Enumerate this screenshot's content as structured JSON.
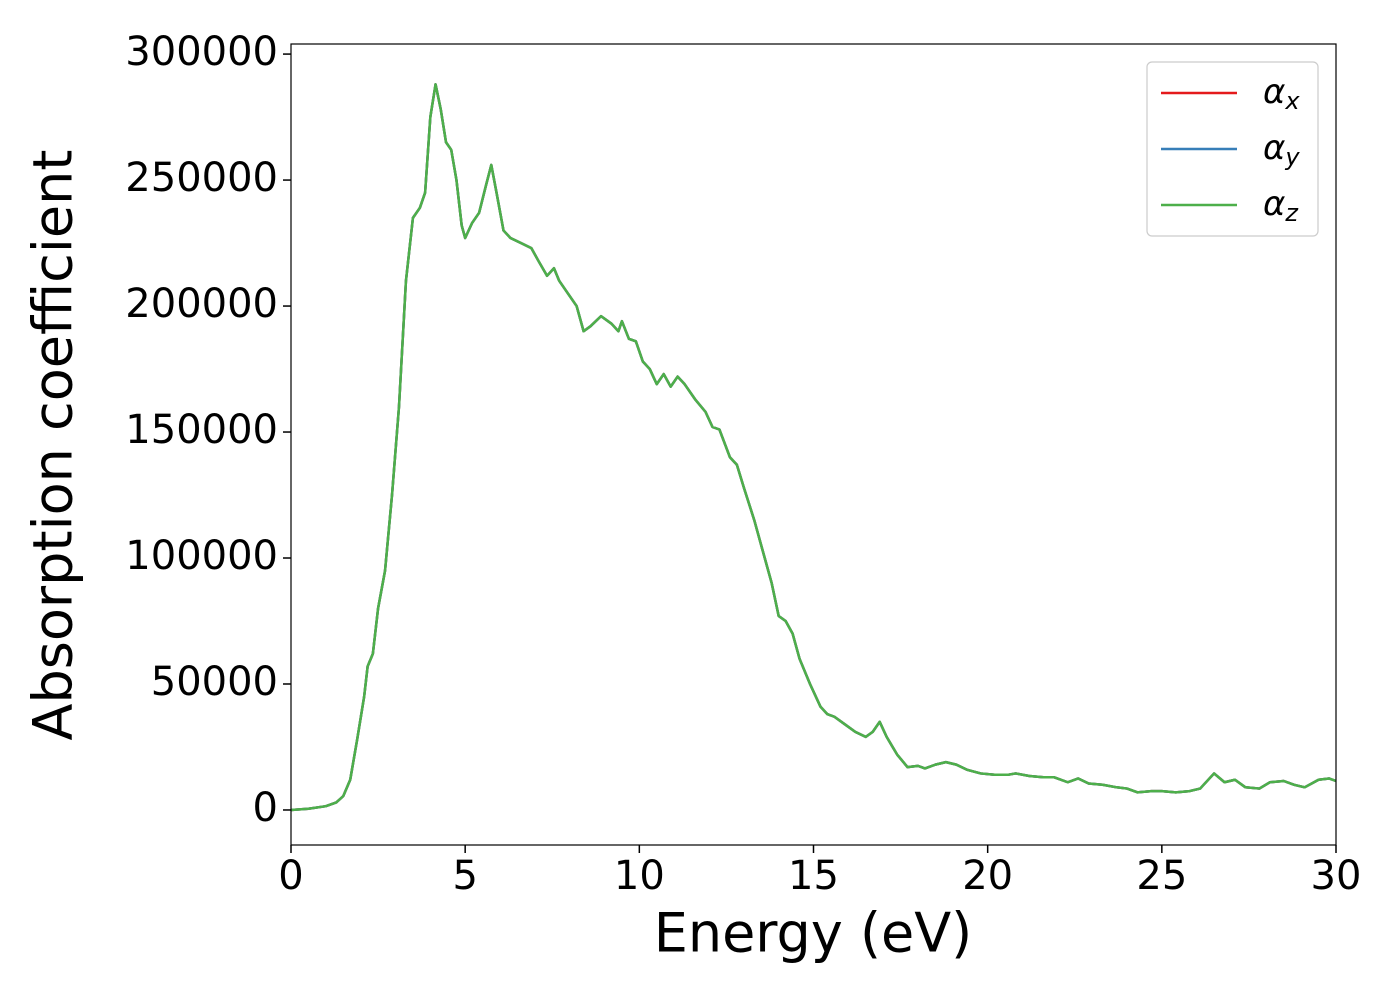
{
  "chart_data": {
    "type": "line",
    "xlabel": "Energy (eV)",
    "ylabel": "Absorption coefficient",
    "x": [
      0,
      0.5,
      1.0,
      1.3,
      1.5,
      1.7,
      1.9,
      2.1,
      2.2,
      2.35,
      2.5,
      2.7,
      2.9,
      3.1,
      3.3,
      3.5,
      3.7,
      3.85,
      4.0,
      4.15,
      4.3,
      4.45,
      4.6,
      4.75,
      4.9,
      5.0,
      5.2,
      5.4,
      5.6,
      5.75,
      5.9,
      6.1,
      6.3,
      6.6,
      6.9,
      7.1,
      7.35,
      7.55,
      7.7,
      7.9,
      8.2,
      8.4,
      8.6,
      8.9,
      9.2,
      9.4,
      9.5,
      9.7,
      9.9,
      10.1,
      10.3,
      10.5,
      10.7,
      10.9,
      11.1,
      11.3,
      11.6,
      11.9,
      12.1,
      12.3,
      12.6,
      12.8,
      13.0,
      13.3,
      13.6,
      13.8,
      14.0,
      14.2,
      14.4,
      14.6,
      14.9,
      15.2,
      15.4,
      15.6,
      15.9,
      16.2,
      16.5,
      16.7,
      16.9,
      17.1,
      17.4,
      17.7,
      18.0,
      18.2,
      18.5,
      18.8,
      19.1,
      19.4,
      19.8,
      20.2,
      20.6,
      20.8,
      21.2,
      21.6,
      21.9,
      22.3,
      22.6,
      22.9,
      23.3,
      23.7,
      24.0,
      24.3,
      24.7,
      25.0,
      25.4,
      25.8,
      26.1,
      26.5,
      26.8,
      27.1,
      27.4,
      27.8,
      28.1,
      28.5,
      28.8,
      29.1,
      29.5,
      29.8,
      30
    ],
    "series": [
      {
        "name": "αx",
        "color": "#e41a1c",
        "values": [
          0,
          500,
          1500,
          3000,
          5500,
          12000,
          28000,
          45000,
          57000,
          62000,
          80000,
          95000,
          125000,
          160000,
          210000,
          235000,
          239000,
          245000,
          275000,
          288000,
          278000,
          265000,
          262000,
          250000,
          232000,
          227000,
          233000,
          237000,
          248000,
          256000,
          245000,
          230000,
          227000,
          225000,
          223000,
          218000,
          212000,
          215000,
          210000,
          206000,
          200000,
          190000,
          192000,
          196000,
          193000,
          190000,
          194000,
          187000,
          186000,
          178000,
          175000,
          169000,
          173000,
          168000,
          172000,
          169000,
          163000,
          158000,
          152000,
          151000,
          140000,
          137000,
          128000,
          115000,
          100000,
          90000,
          77000,
          75000,
          70000,
          60000,
          50000,
          41000,
          38000,
          37000,
          34000,
          31000,
          29000,
          31000,
          35000,
          29000,
          22000,
          17000,
          17500,
          16500,
          18000,
          19000,
          18000,
          16000,
          14500,
          14000,
          14000,
          14500,
          13500,
          13000,
          13000,
          11000,
          12500,
          10500,
          10000,
          9000,
          8500,
          7000,
          7500,
          7500,
          7000,
          7500,
          8500,
          14500,
          11000,
          12000,
          9000,
          8500,
          11000,
          11500,
          10000,
          9000,
          12000,
          12500,
          11500
        ]
      },
      {
        "name": "αy",
        "color": "#377eb8",
        "values": [
          0,
          500,
          1500,
          3000,
          5500,
          12000,
          28000,
          45000,
          57000,
          62000,
          80000,
          95000,
          125000,
          160000,
          210000,
          235000,
          239000,
          245000,
          275000,
          288000,
          278000,
          265000,
          262000,
          250000,
          232000,
          227000,
          233000,
          237000,
          248000,
          256000,
          245000,
          230000,
          227000,
          225000,
          223000,
          218000,
          212000,
          215000,
          210000,
          206000,
          200000,
          190000,
          192000,
          196000,
          193000,
          190000,
          194000,
          187000,
          186000,
          178000,
          175000,
          169000,
          173000,
          168000,
          172000,
          169000,
          163000,
          158000,
          152000,
          151000,
          140000,
          137000,
          128000,
          115000,
          100000,
          90000,
          77000,
          75000,
          70000,
          60000,
          50000,
          41000,
          38000,
          37000,
          34000,
          31000,
          29000,
          31000,
          35000,
          29000,
          22000,
          17000,
          17500,
          16500,
          18000,
          19000,
          18000,
          16000,
          14500,
          14000,
          14000,
          14500,
          13500,
          13000,
          13000,
          11000,
          12500,
          10500,
          10000,
          9000,
          8500,
          7000,
          7500,
          7500,
          7000,
          7500,
          8500,
          14500,
          11000,
          12000,
          9000,
          8500,
          11000,
          11500,
          10000,
          9000,
          12000,
          12500,
          11500
        ]
      },
      {
        "name": "αz",
        "color": "#4daf4a",
        "values": [
          0,
          500,
          1500,
          3000,
          5500,
          12000,
          28000,
          45000,
          57000,
          62000,
          80000,
          95000,
          125000,
          160000,
          210000,
          235000,
          239000,
          245000,
          275000,
          288000,
          278000,
          265000,
          262000,
          250000,
          232000,
          227000,
          233000,
          237000,
          248000,
          256000,
          245000,
          230000,
          227000,
          225000,
          223000,
          218000,
          212000,
          215000,
          210000,
          206000,
          200000,
          190000,
          192000,
          196000,
          193000,
          190000,
          194000,
          187000,
          186000,
          178000,
          175000,
          169000,
          173000,
          168000,
          172000,
          169000,
          163000,
          158000,
          152000,
          151000,
          140000,
          137000,
          128000,
          115000,
          100000,
          90000,
          77000,
          75000,
          70000,
          60000,
          50000,
          41000,
          38000,
          37000,
          34000,
          31000,
          29000,
          31000,
          35000,
          29000,
          22000,
          17000,
          17500,
          16500,
          18000,
          19000,
          18000,
          16000,
          14500,
          14000,
          14000,
          14500,
          13500,
          13000,
          13000,
          11000,
          12500,
          10500,
          10000,
          9000,
          8500,
          7000,
          7500,
          7500,
          7000,
          7500,
          8500,
          14500,
          11000,
          12000,
          9000,
          8500,
          11000,
          11500,
          10000,
          9000,
          12000,
          12500,
          11500
        ]
      }
    ],
    "xlim": [
      0,
      30
    ],
    "xticks": [
      0,
      5,
      10,
      15,
      20,
      25,
      30
    ],
    "ylim": [
      -13900,
      304000
    ],
    "yticks": [
      0,
      50000,
      100000,
      150000,
      200000,
      250000,
      300000
    ],
    "grid": false,
    "legend": "upper right"
  }
}
